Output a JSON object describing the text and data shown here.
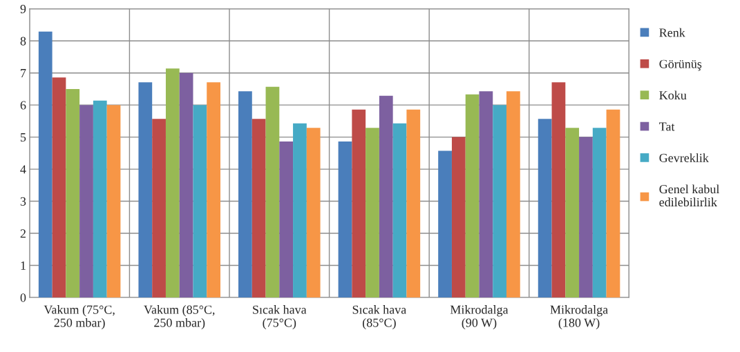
{
  "chart_data": {
    "type": "bar",
    "categories": [
      "Vakum (75°C,\n250 mbar)",
      "Vakum (85°C,\n250 mbar)",
      "Sıcak hava\n(75°C)",
      "Sıcak hava\n(85°C)",
      "Mikrodalga\n(90 W)",
      "Mikrodalga\n(180 W)"
    ],
    "series": [
      {
        "name": "Renk",
        "color": "#4a7ebb",
        "values": [
          8.29,
          6.71,
          6.43,
          4.86,
          4.57,
          5.57
        ]
      },
      {
        "name": "Görünüş",
        "color": "#be4b48",
        "values": [
          6.86,
          5.57,
          5.57,
          5.86,
          5.0,
          6.71
        ]
      },
      {
        "name": "Koku",
        "color": "#98b954",
        "values": [
          6.5,
          7.14,
          6.57,
          5.29,
          6.33,
          5.29
        ]
      },
      {
        "name": "Tat",
        "color": "#7d60a0",
        "values": [
          6.0,
          7.0,
          4.86,
          6.29,
          6.43,
          5.0
        ]
      },
      {
        "name": "Gevreklik",
        "color": "#46aac5",
        "values": [
          6.14,
          6.0,
          5.43,
          5.43,
          6.0,
          5.29
        ]
      },
      {
        "name": "Genel kabul\nedilebilirlik",
        "color": "#f79646",
        "values": [
          6.0,
          6.71,
          5.29,
          5.86,
          6.43,
          5.86
        ]
      }
    ],
    "ylim": [
      0,
      9
    ],
    "yticks": [
      0,
      1,
      2,
      3,
      4,
      5,
      6,
      7,
      8,
      9
    ],
    "grid": true,
    "legend": "right"
  }
}
